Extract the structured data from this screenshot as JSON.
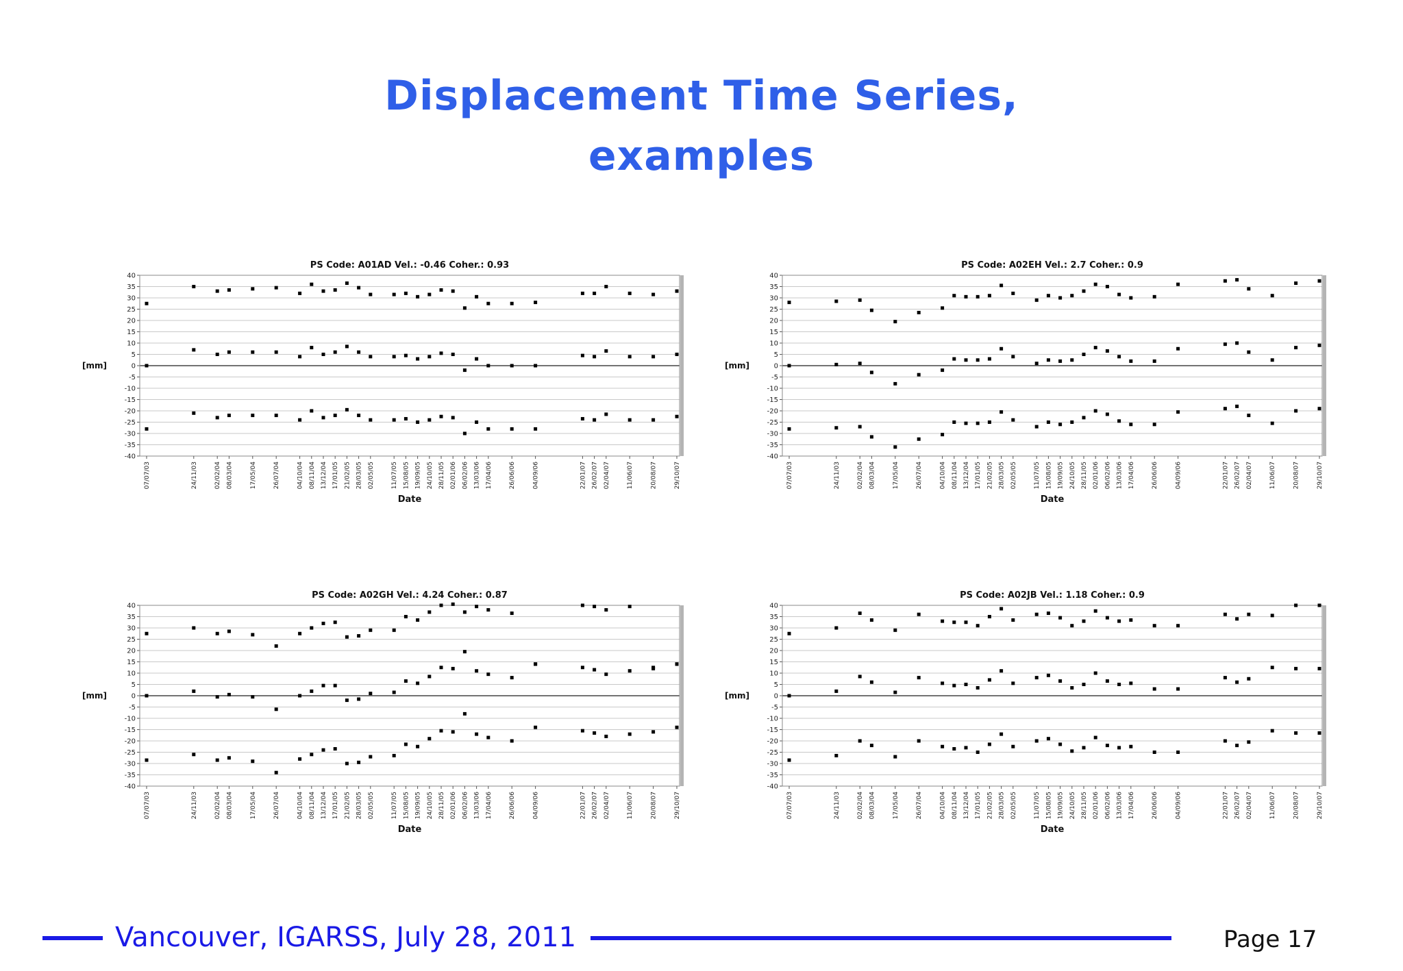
{
  "slide": {
    "title_line1": "Displacement Time Series,",
    "title_line2": "examples",
    "footer_text": "Vancouver, IGARSS, July 28, 2011",
    "page": "Page 17"
  },
  "colors": {
    "title": "#2f5fe8",
    "footer": "#1a1ae6",
    "markers": "#000000"
  },
  "chart_data": [
    {
      "type": "scatter",
      "title": "PS Code: A01AD   Vel.: -0.46   Coher.: 0.93",
      "xlabel": "Date",
      "ylabel": "[mm]",
      "ylim": [
        -40,
        40
      ],
      "yticks": [
        40,
        35,
        30,
        25,
        20,
        15,
        10,
        5,
        0,
        -5,
        -10,
        -15,
        -20,
        -25,
        -30,
        -35,
        -40
      ],
      "grid": true,
      "x": [
        "07/07/03",
        "24/11/03",
        "02/02/04",
        "08/03/04",
        "17/05/04",
        "26/07/04",
        "04/10/04",
        "08/11/04",
        "13/12/04",
        "17/01/05",
        "21/02/05",
        "28/03/05",
        "02/05/05",
        "11/07/05",
        "15/08/05",
        "19/09/05",
        "24/10/05",
        "28/11/05",
        "02/01/06",
        "06/02/06",
        "13/03/06",
        "17/04/06",
        "26/06/06",
        "04/09/06",
        "22/01/07",
        "26/02/07",
        "02/04/07",
        "11/06/07",
        "20/08/07",
        "29/10/07"
      ],
      "series": [
        {
          "values": [
            27.5,
            35,
            33,
            33.5,
            34,
            34.5,
            32,
            36,
            33,
            33.5,
            36.5,
            34.5,
            31.5,
            31.5,
            32,
            30.5,
            31.5,
            33.5,
            33,
            25.5,
            30.5,
            27.5,
            27.5,
            28,
            32,
            32,
            35,
            32,
            31.5,
            33
          ]
        },
        {
          "values": [
            0,
            7,
            5,
            6,
            6,
            6,
            4,
            8,
            5,
            6,
            8.5,
            6,
            4,
            4,
            4.5,
            3,
            4,
            5.5,
            5,
            -2,
            3,
            0,
            0,
            0,
            4.5,
            4,
            6.5,
            4,
            4,
            5
          ]
        },
        {
          "values": [
            -28,
            -21,
            -23,
            -22,
            -22,
            -22,
            -24,
            -20,
            -23,
            -22,
            -19.5,
            -22,
            -24,
            -24,
            -23.5,
            -25,
            -24,
            -22.5,
            -23,
            -30,
            -25,
            -28,
            -28,
            -28,
            -23.5,
            -24,
            -21.5,
            -24,
            -24,
            -22.5
          ]
        }
      ]
    },
    {
      "type": "scatter",
      "title": "PS Code: A02EH   Vel.: 2.7   Coher.: 0.9",
      "xlabel": "Date",
      "ylabel": "[mm]",
      "ylim": [
        -40,
        40
      ],
      "yticks": [
        40,
        35,
        30,
        25,
        20,
        15,
        10,
        5,
        0,
        -5,
        -10,
        -15,
        -20,
        -25,
        -30,
        -35,
        -40
      ],
      "grid": true,
      "x": [
        "07/07/03",
        "24/11/03",
        "02/02/04",
        "08/03/04",
        "17/05/04",
        "26/07/04",
        "04/10/04",
        "08/11/04",
        "13/12/04",
        "17/01/05",
        "21/02/05",
        "28/03/05",
        "02/05/05",
        "11/07/05",
        "15/08/05",
        "19/09/05",
        "24/10/05",
        "28/11/05",
        "02/01/06",
        "06/02/06",
        "13/03/06",
        "17/04/06",
        "26/06/06",
        "04/09/06",
        "22/01/07",
        "26/02/07",
        "02/04/07",
        "11/06/07",
        "20/08/07",
        "29/10/07"
      ],
      "series": [
        {
          "values": [
            28,
            28.5,
            29,
            24.5,
            19.5,
            23.5,
            25.5,
            31,
            30.5,
            30.5,
            31,
            35.5,
            32,
            29,
            31,
            30,
            31,
            33,
            36,
            35,
            31.5,
            30,
            30.5,
            36,
            37.5,
            38,
            34,
            31,
            36.5,
            37.5
          ]
        },
        {
          "values": [
            0,
            0.5,
            1,
            -3,
            -8,
            -4,
            -2,
            3,
            2.5,
            2.5,
            3,
            7.5,
            4,
            1,
            2.5,
            2,
            2.5,
            5,
            8,
            6.5,
            4,
            2,
            2,
            7.5,
            9.5,
            10,
            6,
            2.5,
            8,
            9
          ]
        },
        {
          "values": [
            -28,
            -27.5,
            -27,
            -31.5,
            -36,
            -32.5,
            -30.5,
            -25,
            -25.5,
            -25.5,
            -25,
            -20.5,
            -24,
            -27,
            -25,
            -26,
            -25,
            -23,
            -20,
            -21.5,
            -24.5,
            -26,
            -26,
            -20.5,
            -19,
            -18,
            -22,
            -25.5,
            -20,
            -19
          ]
        }
      ]
    },
    {
      "type": "scatter",
      "title": "PS Code: A02GH   Vel.: 4.24   Coher.: 0.87",
      "xlabel": "Date",
      "ylabel": "[mm]",
      "ylim": [
        -40,
        40
      ],
      "yticks": [
        40,
        35,
        30,
        25,
        20,
        15,
        10,
        5,
        0,
        -5,
        -10,
        -15,
        -20,
        -25,
        -30,
        -35,
        -40
      ],
      "grid": true,
      "x": [
        "07/07/03",
        "24/11/03",
        "02/02/04",
        "08/03/04",
        "17/05/04",
        "26/07/04",
        "04/10/04",
        "08/11/04",
        "13/12/04",
        "17/01/05",
        "21/02/05",
        "28/03/05",
        "02/05/05",
        "11/07/05",
        "15/08/05",
        "19/09/05",
        "24/10/05",
        "28/11/05",
        "02/01/06",
        "06/02/06",
        "13/03/06",
        "17/04/06",
        "26/06/06",
        "04/09/06",
        "22/01/07",
        "26/02/07",
        "02/04/07",
        "11/06/07",
        "20/08/07",
        "29/10/07"
      ],
      "series": [
        {
          "values": [
            27.5,
            30,
            27.5,
            28.5,
            27,
            22,
            27.5,
            30,
            32,
            32.5,
            26,
            26.5,
            29,
            29,
            35,
            33.5,
            37,
            40,
            40.5,
            37,
            39.5,
            38,
            36.5,
            14,
            40,
            39.5,
            38,
            39.5,
            12.5,
            14
          ]
        },
        {
          "values": [
            0,
            2,
            -0.5,
            0.5,
            -0.5,
            -6,
            0,
            2,
            4.5,
            4.5,
            -2,
            -1.5,
            1,
            1.5,
            6.5,
            5.5,
            8.5,
            12.5,
            12,
            19.5,
            11,
            9.5,
            8,
            14,
            12.5,
            11.5,
            9.5,
            11,
            12,
            14
          ]
        },
        {
          "values": [
            -28.5,
            -26,
            -28.5,
            -27.5,
            -29,
            -34,
            -28,
            -26,
            -24,
            -23.5,
            -30,
            -29.5,
            -27,
            -26.5,
            -21.5,
            -22.5,
            -19,
            -15.5,
            -16,
            -8,
            -17,
            -18.5,
            -20,
            -14,
            -15.5,
            -16.5,
            -18,
            -17,
            -16,
            -14
          ]
        }
      ]
    },
    {
      "type": "scatter",
      "title": "PS Code: A02JB   Vel.: 1.18   Coher.: 0.9",
      "xlabel": "Date",
      "ylabel": "[mm]",
      "ylim": [
        -40,
        40
      ],
      "yticks": [
        40,
        35,
        30,
        25,
        20,
        15,
        10,
        5,
        0,
        -5,
        -10,
        -15,
        -20,
        -25,
        -30,
        -35,
        -40
      ],
      "grid": true,
      "x": [
        "07/07/03",
        "24/11/03",
        "02/02/04",
        "08/03/04",
        "17/05/04",
        "26/07/04",
        "04/10/04",
        "08/11/04",
        "13/12/04",
        "17/01/05",
        "21/02/05",
        "28/03/05",
        "02/05/05",
        "11/07/05",
        "15/08/05",
        "19/09/05",
        "24/10/05",
        "28/11/05",
        "02/01/06",
        "06/02/06",
        "13/03/06",
        "17/04/06",
        "26/06/06",
        "04/09/06",
        "22/01/07",
        "26/02/07",
        "02/04/07",
        "11/06/07",
        "20/08/07",
        "29/10/07"
      ],
      "series": [
        {
          "values": [
            27.5,
            30,
            36.5,
            33.5,
            29,
            36,
            33,
            32.5,
            32.5,
            31,
            35,
            38.5,
            33.5,
            36,
            36.5,
            34.5,
            31,
            33,
            37.5,
            34.5,
            33,
            33.5,
            31,
            31,
            36,
            34,
            36,
            35.5,
            40,
            40
          ]
        },
        {
          "values": [
            0,
            2,
            8.5,
            6,
            1.5,
            8,
            5.5,
            4.5,
            5,
            3.5,
            7,
            11,
            5.5,
            8,
            9,
            6.5,
            3.5,
            5,
            10,
            6.5,
            5,
            5.5,
            3,
            3,
            8,
            6,
            7.5,
            12.5,
            12,
            12
          ]
        },
        {
          "values": [
            -28.5,
            -26.5,
            -20,
            -22,
            -27,
            -20,
            -22.5,
            -23.5,
            -23,
            -25,
            -21.5,
            -17,
            -22.5,
            -20,
            -19,
            -21.5,
            -24.5,
            -23,
            -18.5,
            -22,
            -23,
            -22.5,
            -25,
            -25,
            -20,
            -22,
            -20.5,
            -15.5,
            -16.5,
            -16.5
          ]
        }
      ]
    }
  ]
}
